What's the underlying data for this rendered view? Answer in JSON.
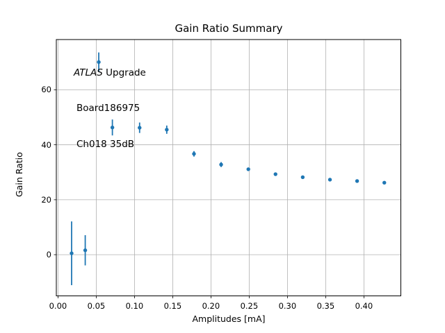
{
  "figure": {
    "title": "Gain Ratio Summary",
    "xlabel": "Amplitudes [mA]",
    "ylabel": "Gain Ratio"
  },
  "annotation": {
    "experiment": "ATLAS",
    "line1_rest": " Upgrade",
    "board": "Board186975",
    "channel": "Ch018 35dB"
  },
  "chart_data": {
    "type": "scatter",
    "title": "Gain Ratio Summary",
    "xlabel": "Amplitudes [mA]",
    "ylabel": "Gain Ratio",
    "xlim": [
      -0.0022,
      0.4483
    ],
    "ylim": [
      -15.0,
      78.3
    ],
    "grid": true,
    "legend": false,
    "xticks": {
      "values": [
        0.0,
        0.05,
        0.1,
        0.15,
        0.2,
        0.25,
        0.3,
        0.35,
        0.4
      ],
      "labels": [
        "0.00",
        "0.05",
        "0.10",
        "0.15",
        "0.20",
        "0.25",
        "0.30",
        "0.35",
        "0.40"
      ]
    },
    "yticks": {
      "values": [
        0,
        20,
        40,
        60
      ],
      "labels": [
        "0",
        "20",
        "40",
        "60"
      ]
    },
    "colors": {
      "marker": "#1f77b4",
      "grid": "#b0b0b0",
      "spine": "#000000"
    },
    "series": [
      {
        "name": "gain-ratio-vs-amplitude",
        "marker": "circle",
        "error_bars": "y",
        "x": [
          0.0178,
          0.0356,
          0.0533,
          0.0711,
          0.1067,
          0.1422,
          0.1778,
          0.2133,
          0.2489,
          0.2844,
          0.32,
          0.3556,
          0.3911,
          0.4267
        ],
        "y": [
          0.5,
          1.6,
          70.1,
          46.3,
          46.2,
          45.5,
          36.7,
          32.8,
          31.1,
          29.3,
          28.2,
          27.3,
          26.8,
          26.2
        ],
        "yerr": [
          11.6,
          5.5,
          3.5,
          2.9,
          1.9,
          1.5,
          1.0,
          0.9,
          0.6,
          0.5,
          0.5,
          0.4,
          0.4,
          0.4
        ]
      }
    ],
    "annotation_lines": [
      "ATLAS Upgrade",
      "Board186975",
      "Ch018 35dB"
    ]
  }
}
